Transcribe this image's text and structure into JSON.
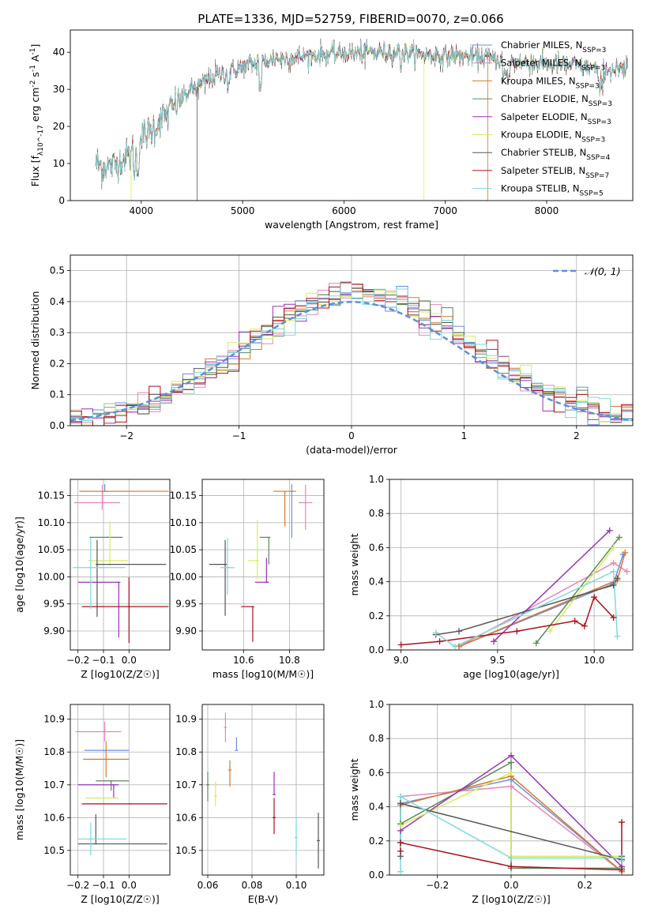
{
  "figure_title": "PLATE=1336, MJD=52759, FIBERID=0070, z=0.066",
  "colors": {
    "Chabrier MILES": "#6a8fe0",
    "Salpeter MILES": "#e487b8",
    "Kroupa MILES": "#d9782a",
    "Chabrier ELODIE": "#5a8a5a",
    "Salpeter ELODIE": "#9b30b8",
    "Kroupa ELODIE": "#d6ee5a",
    "Chabrier STELIB": "#555555",
    "Salpeter STELIB": "#a8121a",
    "Kroupa STELIB": "#7ed9da",
    "gauss": "#5b8fdc",
    "grid": "#b0b0b0"
  },
  "chart_data": [
    {
      "type": "line",
      "title": "PLATE=1336, MJD=52759, FIBERID=0070, z=0.066",
      "xlabel": "wavelength [Angstrom, rest frame]",
      "ylabel": "Flux [f_λ10^-17 erg cm^-2 s^-1 A^-1]",
      "xlim": [
        3300,
        8850
      ],
      "ylim": [
        0,
        46
      ],
      "xticks": [
        "4000",
        "5000",
        "6000",
        "7000",
        "8000"
      ],
      "yticks": [
        "0",
        "10",
        "20",
        "30",
        "40"
      ],
      "grid": false,
      "legend_position": "top-right",
      "legend": [
        "Chabrier MILES, N_SSP=3",
        "Salpeter MILES, N_SSP=3",
        "Kroupa MILES, N_SSP=3",
        "Chabrier ELODIE, N_SSP=3",
        "Salpeter ELODIE, N_SSP=3",
        "Kroupa ELODIE, N_SSP=3",
        "Chabrier STELIB, N_SSP=4",
        "Salpeter STELIB, N_SSP=7",
        "Kroupa STELIB, N_SSP=5"
      ],
      "continuum_points": [
        [
          3550,
          10
        ],
        [
          3700,
          9
        ],
        [
          3850,
          12
        ],
        [
          3950,
          13
        ],
        [
          4000,
          17
        ],
        [
          4100,
          19
        ],
        [
          4300,
          25
        ],
        [
          4500,
          30
        ],
        [
          4700,
          33
        ],
        [
          5000,
          36
        ],
        [
          5300,
          38
        ],
        [
          5600,
          39
        ],
        [
          5900,
          39.5
        ],
        [
          6200,
          40
        ],
        [
          6500,
          40
        ],
        [
          6800,
          39.5
        ],
        [
          7100,
          39
        ],
        [
          7400,
          38.5
        ],
        [
          7600,
          37.5
        ],
        [
          7900,
          37
        ],
        [
          8200,
          36.5
        ],
        [
          8500,
          35.5
        ],
        [
          8800,
          35
        ]
      ]
    },
    {
      "type": "histogram",
      "xlabel": "(data-model)/error",
      "ylabel": "Normed distribution",
      "xlim": [
        -2.5,
        2.5
      ],
      "ylim": [
        0,
        0.55
      ],
      "xticks": [
        "−2",
        "−1",
        "0",
        "1",
        "2"
      ],
      "yticks": [
        "0.0",
        "0.1",
        "0.2",
        "0.3",
        "0.4",
        "0.5"
      ],
      "grid": true,
      "legend": [
        "𝒩(0, 1)"
      ],
      "legend_position": "top-right",
      "reference_curve": "normal(0,1)"
    },
    {
      "type": "errorbar",
      "xlabel": "Z [log10(Z/Z☉)]",
      "ylabel": "age  [log10(age/yr)]",
      "xlim": [
        -0.23,
        0.16
      ],
      "ylim": [
        9.865,
        10.18
      ],
      "xticks": [
        "−0.2",
        "−0.1",
        "0.0"
      ],
      "yticks": [
        "9.90",
        "9.95",
        "10.00",
        "10.05",
        "10.10",
        "10.15"
      ],
      "grid": true,
      "points": [
        {
          "model": "Chabrier MILES",
          "x": -0.095,
          "xerr": [
            0.095,
            0.095
          ],
          "y": 10.158,
          "yerr": [
            0.0,
            0.013
          ]
        },
        {
          "model": "Salpeter MILES",
          "x": -0.105,
          "xerr": [
            0.11,
            0.07
          ],
          "y": 10.137,
          "yerr": [
            0.013,
            0.033
          ]
        },
        {
          "model": "Kroupa MILES",
          "x": -0.085,
          "xerr": [
            0.11,
            0.24
          ],
          "y": 10.158,
          "yerr": [
            0.0,
            0.0
          ]
        },
        {
          "model": "Chabrier ELODIE",
          "x": -0.08,
          "xerr": [
            0.075,
            0.055
          ],
          "y": 10.073,
          "yerr": [
            0.0,
            0.0
          ]
        },
        {
          "model": "Salpeter ELODIE",
          "x": -0.04,
          "xerr": [
            0.16,
            0.0
          ],
          "y": 9.99,
          "yerr": [
            0.102,
            0.0
          ]
        },
        {
          "model": "Kroupa ELODIE",
          "x": -0.075,
          "xerr": [
            0.085,
            0.07
          ],
          "y": 10.03,
          "yerr": [
            0.01,
            0.073
          ]
        },
        {
          "model": "Chabrier STELIB",
          "x": -0.125,
          "xerr": [
            0.0,
            0.27
          ],
          "y": 10.023,
          "yerr": [
            0.097,
            0.045
          ]
        },
        {
          "model": "Salpeter STELIB",
          "x": 0.0,
          "xerr": [
            0.185,
            0.155
          ],
          "y": 9.945,
          "yerr": [
            0.067,
            0.054
          ]
        },
        {
          "model": "Kroupa STELIB",
          "x": -0.15,
          "xerr": [
            0.07,
            0.135
          ],
          "y": 10.017,
          "yerr": [
            0.077,
            0.055
          ]
        }
      ]
    },
    {
      "type": "errorbar",
      "xlabel": "mass [log10(M/M☉)]",
      "ylabel": "",
      "xlim": [
        10.42,
        10.95
      ],
      "ylim": [
        9.865,
        10.18
      ],
      "xticks": [
        "10.6",
        "10.8"
      ],
      "yticks": [
        "9.90",
        "9.95",
        "10.00",
        "10.05",
        "10.10",
        "10.15"
      ],
      "grid": true,
      "points": [
        {
          "model": "Chabrier MILES",
          "x": 10.81,
          "xerr": [
            0.0,
            0.0
          ],
          "y": 10.158,
          "yerr": [
            0.086,
            0.013
          ]
        },
        {
          "model": "Salpeter MILES",
          "x": 10.87,
          "xerr": [
            0.03,
            0.03
          ],
          "y": 10.137,
          "yerr": [
            0.05,
            0.033
          ]
        },
        {
          "model": "Kroupa MILES",
          "x": 10.78,
          "xerr": [
            0.05,
            0.05
          ],
          "y": 10.158,
          "yerr": [
            0.065,
            0.0
          ]
        },
        {
          "model": "Chabrier ELODIE",
          "x": 10.71,
          "xerr": [
            0.04,
            0.0
          ],
          "y": 10.073,
          "yerr": [
            0.05,
            0.0
          ]
        },
        {
          "model": "Salpeter ELODIE",
          "x": 10.7,
          "xerr": [
            0.05,
            0.01
          ],
          "y": 9.99,
          "yerr": [
            0.0,
            0.045
          ]
        },
        {
          "model": "Kroupa ELODIE",
          "x": 10.66,
          "xerr": [
            0.04,
            0.0
          ],
          "y": 10.03,
          "yerr": [
            0.035,
            0.075
          ]
        },
        {
          "model": "Chabrier STELIB",
          "x": 10.52,
          "xerr": [
            0.07,
            0.0
          ],
          "y": 10.023,
          "yerr": [
            0.095,
            0.045
          ]
        },
        {
          "model": "Salpeter STELIB",
          "x": 10.64,
          "xerr": [
            0.05,
            0.0
          ],
          "y": 9.945,
          "yerr": [
            0.065,
            0.0
          ]
        },
        {
          "model": "Kroupa STELIB",
          "x": 10.53,
          "xerr": [
            0.03,
            0.03
          ],
          "y": 10.017,
          "yerr": [
            0.05,
            0.055
          ]
        }
      ]
    },
    {
      "type": "line",
      "xlabel": "age  [log10(age/yr)]",
      "ylabel": "mass weight",
      "xlim": [
        8.94,
        10.2
      ],
      "ylim": [
        0.0,
        1.0
      ],
      "xticks": [
        "9.0",
        "9.5",
        "10.0"
      ],
      "yticks": [
        "0.0",
        "0.2",
        "0.4",
        "0.6",
        "0.8",
        "1.0"
      ],
      "grid": true,
      "series": [
        {
          "model": "Chabrier MILES",
          "x": [
            9.3,
            10.1,
            10.15
          ],
          "y": [
            0.02,
            0.39,
            0.56
          ]
        },
        {
          "model": "Salpeter MILES",
          "x": [
            9.3,
            10.1,
            10.17
          ],
          "y": [
            0.02,
            0.51,
            0.46
          ]
        },
        {
          "model": "Kroupa MILES",
          "x": [
            9.3,
            10.12,
            10.16
          ],
          "y": [
            0.02,
            0.41,
            0.57
          ]
        },
        {
          "model": "Chabrier ELODIE",
          "x": [
            9.7,
            10.13
          ],
          "y": [
            0.04,
            0.66
          ]
        },
        {
          "model": "Salpeter ELODIE",
          "x": [
            9.48,
            10.08
          ],
          "y": [
            0.05,
            0.7
          ]
        },
        {
          "model": "Kroupa ELODIE",
          "x": [
            9.77,
            10.1
          ],
          "y": [
            0.11,
            0.6
          ]
        },
        {
          "model": "Chabrier STELIB",
          "x": [
            9.18,
            9.3,
            10.1,
            10.12
          ],
          "y": [
            0.09,
            0.11,
            0.38,
            0.42
          ]
        },
        {
          "model": "Salpeter STELIB",
          "x": [
            9.0,
            9.2,
            9.6,
            9.9,
            9.95,
            10.0,
            10.1
          ],
          "y": [
            0.03,
            0.05,
            0.11,
            0.17,
            0.14,
            0.31,
            0.19
          ]
        },
        {
          "model": "Kroupa STELIB",
          "x": [
            9.18,
            9.28,
            10.1,
            10.12
          ],
          "y": [
            0.1,
            0.02,
            0.46,
            0.08
          ]
        }
      ]
    },
    {
      "type": "errorbar",
      "xlabel": "Z [log10(Z/Z☉)]",
      "ylabel": "mass [log10(M/M☉)]",
      "xlim": [
        -0.23,
        0.16
      ],
      "ylim": [
        10.425,
        10.945
      ],
      "xticks": [
        "−0.2",
        "−0.1",
        "0.0"
      ],
      "yticks": [
        "10.5",
        "10.6",
        "10.7",
        "10.8",
        "10.9"
      ],
      "grid": true,
      "points": [
        {
          "model": "Chabrier MILES",
          "x": -0.09,
          "xerr": [
            0.085,
            0.09
          ],
          "y": 10.805,
          "yerr": [
            0.0,
            0.0
          ]
        },
        {
          "model": "Salpeter MILES",
          "x": -0.095,
          "xerr": [
            0.115,
            0.065
          ],
          "y": 10.862,
          "yerr": [
            0.03,
            0.03
          ]
        },
        {
          "model": "Kroupa MILES",
          "x": -0.09,
          "xerr": [
            0.09,
            0.09
          ],
          "y": 10.778,
          "yerr": [
            0.055,
            0.055
          ]
        },
        {
          "model": "Chabrier ELODIE",
          "x": -0.07,
          "xerr": [
            0.06,
            0.07
          ],
          "y": 10.712,
          "yerr": [
            0.03,
            0.0
          ]
        },
        {
          "model": "Salpeter ELODIE",
          "x": -0.06,
          "xerr": [
            0.14,
            0.02
          ],
          "y": 10.7,
          "yerr": [
            0.04,
            0.0
          ]
        },
        {
          "model": "Kroupa ELODIE",
          "x": -0.08,
          "xerr": [
            0.09,
            0.04
          ],
          "y": 10.66,
          "yerr": [
            0.0,
            0.0
          ]
        },
        {
          "model": "Chabrier STELIB",
          "x": -0.13,
          "xerr": [
            0.07,
            0.28
          ],
          "y": 10.52,
          "yerr": [
            0.0,
            0.09
          ]
        },
        {
          "model": "Salpeter STELIB",
          "x": 0.005,
          "xerr": [
            0.19,
            0.145
          ],
          "y": 10.642,
          "yerr": [
            0.0,
            0.0
          ]
        },
        {
          "model": "Kroupa STELIB",
          "x": -0.15,
          "xerr": [
            0.05,
            0.14
          ],
          "y": 10.535,
          "yerr": [
            0.05,
            0.05
          ]
        }
      ]
    },
    {
      "type": "errorbar",
      "xlabel": "E(B-V)",
      "ylabel": "",
      "xlim": [
        0.0575,
        0.1125
      ],
      "ylim": [
        10.425,
        10.945
      ],
      "xticks": [
        "0.06",
        "0.08",
        "0.10"
      ],
      "yticks": [
        "10.5",
        "10.6",
        "10.7",
        "10.8",
        "10.9"
      ],
      "grid": true,
      "points": [
        {
          "model": "Chabrier MILES",
          "x": 0.073,
          "xerr": [
            0,
            0
          ],
          "y": 10.805,
          "yerr": [
            0.0,
            0.04
          ]
        },
        {
          "model": "Salpeter MILES",
          "x": 0.068,
          "xerr": [
            0,
            0
          ],
          "y": 10.875,
          "yerr": [
            0.045,
            0.045
          ]
        },
        {
          "model": "Kroupa MILES",
          "x": 0.07,
          "xerr": [
            0,
            0
          ],
          "y": 10.745,
          "yerr": [
            0.05,
            0.03
          ]
        },
        {
          "model": "Chabrier ELODIE",
          "x": 0.06,
          "xerr": [
            0,
            0
          ],
          "y": 10.7,
          "yerr": [
            0.05,
            0.04
          ]
        },
        {
          "model": "Salpeter ELODIE",
          "x": 0.09,
          "xerr": [
            0,
            0
          ],
          "y": 10.67,
          "yerr": [
            0.0,
            0.07
          ]
        },
        {
          "model": "Kroupa ELODIE",
          "x": 0.0635,
          "xerr": [
            0,
            0
          ],
          "y": 10.665,
          "yerr": [
            0.03,
            0.045
          ]
        },
        {
          "model": "Chabrier STELIB",
          "x": 0.11,
          "xerr": [
            0,
            0
          ],
          "y": 10.53,
          "yerr": [
            0.085,
            0.085
          ]
        },
        {
          "model": "Salpeter STELIB",
          "x": 0.09,
          "xerr": [
            0,
            0
          ],
          "y": 10.6,
          "yerr": [
            0.05,
            0.06
          ]
        },
        {
          "model": "Kroupa STELIB",
          "x": 0.1,
          "xerr": [
            0,
            0
          ],
          "y": 10.54,
          "yerr": [
            0.06,
            0.06
          ]
        }
      ]
    },
    {
      "type": "line",
      "xlabel": "Z [log10(Z/Z☉)]",
      "ylabel": "mass weight",
      "xlim": [
        -0.33,
        0.33
      ],
      "ylim": [
        0.0,
        1.0
      ],
      "xticks": [
        "−0.2",
        "0.0",
        "0.2"
      ],
      "yticks": [
        "0.0",
        "0.2",
        "0.4",
        "0.6",
        "0.8",
        "1.0"
      ],
      "grid": true,
      "series": [
        {
          "model": "Chabrier MILES",
          "x": [
            -0.3,
            0.0,
            0.3
          ],
          "y": [
            0.42,
            0.56,
            0.02
          ]
        },
        {
          "model": "Salpeter MILES",
          "x": [
            -0.3,
            0.0,
            0.3
          ],
          "y": [
            0.46,
            0.52,
            0.02
          ]
        },
        {
          "model": "Kroupa MILES",
          "x": [
            -0.3,
            0.0,
            0.3
          ],
          "y": [
            0.41,
            0.58,
            0.02
          ]
        },
        {
          "model": "Chabrier ELODIE",
          "x": [
            -0.3,
            0.0,
            0.0,
            0.3
          ],
          "y": [
            0.3,
            0.66,
            0.04,
            0.04
          ]
        },
        {
          "model": "Salpeter ELODIE",
          "x": [
            -0.3,
            0.0,
            0.3
          ],
          "y": [
            0.26,
            0.7,
            0.05
          ]
        },
        {
          "model": "Kroupa ELODIE",
          "x": [
            -0.3,
            0.0,
            0.0,
            0.3
          ],
          "y": [
            0.29,
            0.6,
            0.11,
            0.11
          ]
        },
        {
          "model": "Chabrier STELIB",
          "x": [
            -0.3,
            -0.3,
            0.3,
            0.3
          ],
          "y": [
            0.11,
            0.42,
            0.09,
            0.11
          ]
        },
        {
          "model": "Salpeter STELIB",
          "x": [
            -0.3,
            -0.3,
            0.0,
            0.3,
            0.3
          ],
          "y": [
            0.14,
            0.19,
            0.05,
            0.03,
            0.31
          ]
        },
        {
          "model": "Kroupa STELIB",
          "x": [
            -0.3,
            -0.3,
            0.0,
            0.3,
            0.3
          ],
          "y": [
            0.02,
            0.46,
            0.1,
            0.1,
            0.08
          ]
        }
      ]
    }
  ]
}
